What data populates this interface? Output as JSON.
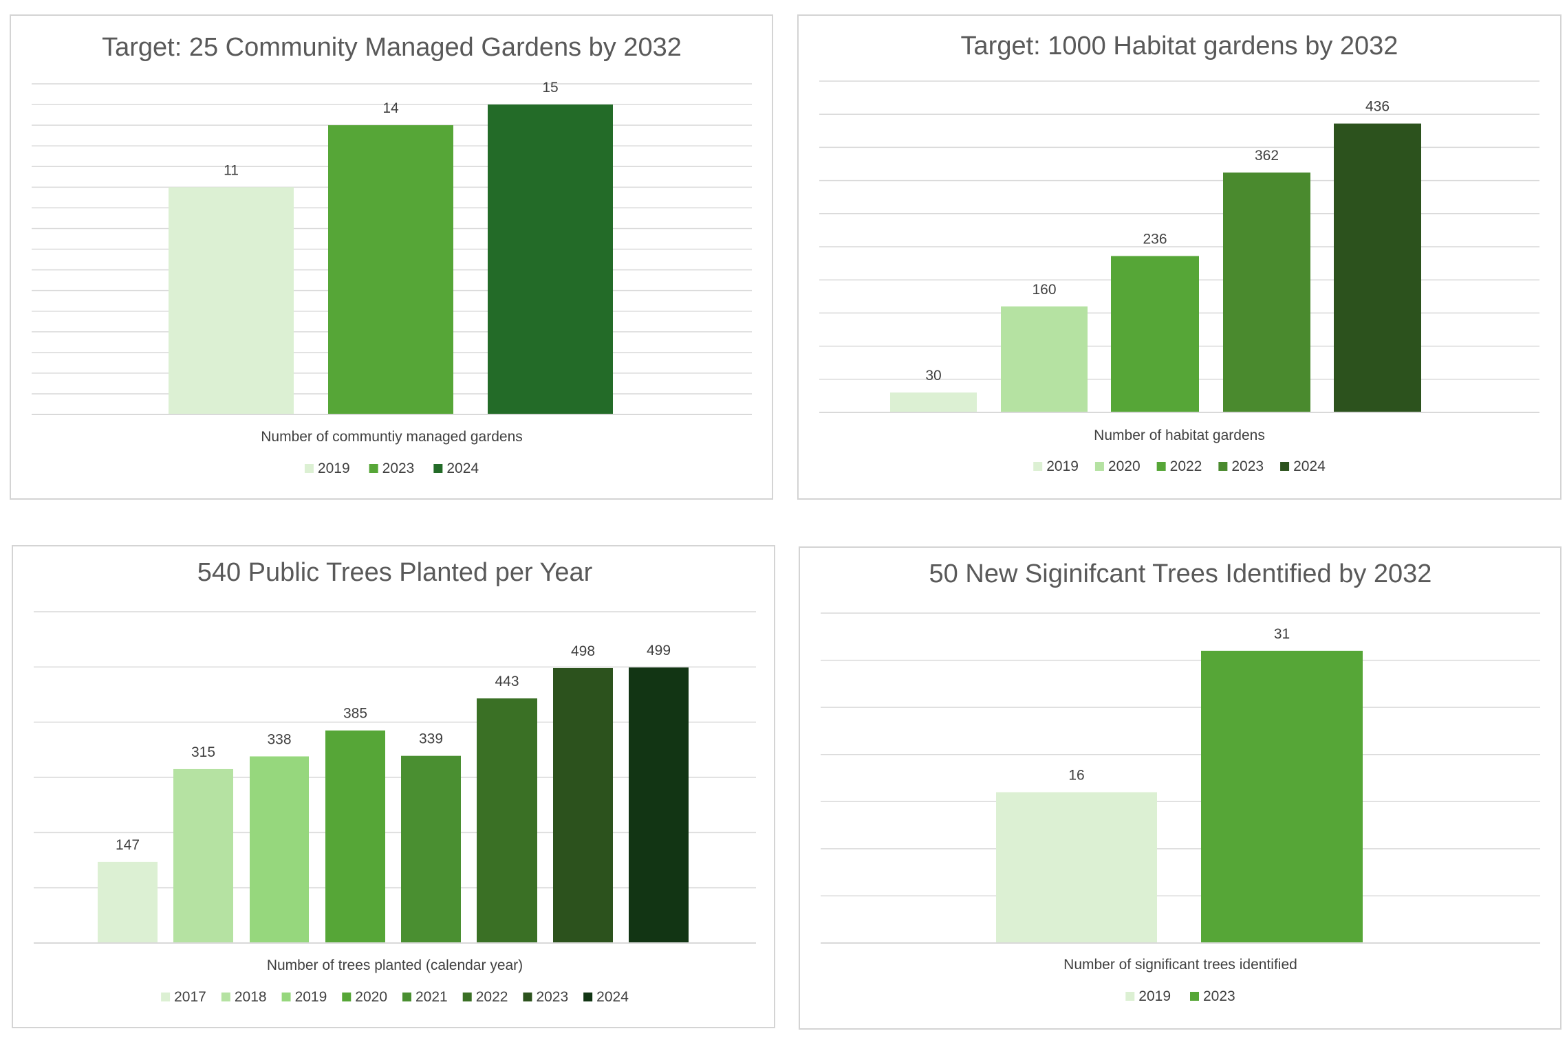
{
  "chart_data": [
    {
      "type": "bar",
      "title": "Target: 25 Community Managed Gardens by 2032",
      "xlabel": "Number of communtiy managed gardens",
      "ylabel": "",
      "legend_position": "bottom",
      "grid": true,
      "ylim": [
        0,
        16
      ],
      "series": [
        {
          "name": "2019",
          "value": 11,
          "color": "#dcf0d3"
        },
        {
          "name": "2023",
          "value": 14,
          "color": "#56a637"
        },
        {
          "name": "2024",
          "value": 15,
          "color": "#236b28"
        }
      ]
    },
    {
      "type": "bar",
      "title": "Target: 1000 Habitat gardens by 2032",
      "xlabel": "Number of habitat gardens",
      "ylabel": "",
      "legend_position": "bottom",
      "grid": true,
      "ylim": [
        0,
        500
      ],
      "series": [
        {
          "name": "2019",
          "value": 30,
          "color": "#dcf0d3"
        },
        {
          "name": "2020",
          "value": 160,
          "color": "#b5e2a2"
        },
        {
          "name": "2022",
          "value": 236,
          "color": "#56a637"
        },
        {
          "name": "2023",
          "value": 362,
          "color": "#4a8a2e"
        },
        {
          "name": "2024",
          "value": 436,
          "color": "#2c521d"
        }
      ]
    },
    {
      "type": "bar",
      "title": "540 Public Trees Planted per Year",
      "xlabel": "Number of trees planted (calendar year)",
      "ylabel": "",
      "legend_position": "bottom",
      "grid": true,
      "ylim": [
        0,
        600
      ],
      "series": [
        {
          "name": "2017",
          "value": 147,
          "color": "#dcf0d3"
        },
        {
          "name": "2018",
          "value": 315,
          "color": "#b5e2a2"
        },
        {
          "name": "2019",
          "value": 338,
          "color": "#96d77d"
        },
        {
          "name": "2020",
          "value": 385,
          "color": "#56a637"
        },
        {
          "name": "2021",
          "value": 339,
          "color": "#4a8f31"
        },
        {
          "name": "2022",
          "value": 443,
          "color": "#3a7025"
        },
        {
          "name": "2023",
          "value": 498,
          "color": "#2c521d"
        },
        {
          "name": "2024",
          "value": 499,
          "color": "#123514"
        }
      ]
    },
    {
      "type": "bar",
      "title": "50 New Siginifcant Trees Identified by 2032",
      "xlabel": "Number of significant trees identified",
      "ylabel": "",
      "legend_position": "bottom",
      "grid": true,
      "ylim": [
        0,
        35
      ],
      "series": [
        {
          "name": "2019",
          "value": 16,
          "color": "#dcf0d3"
        },
        {
          "name": "2023",
          "value": 31,
          "color": "#56a637"
        }
      ]
    }
  ]
}
